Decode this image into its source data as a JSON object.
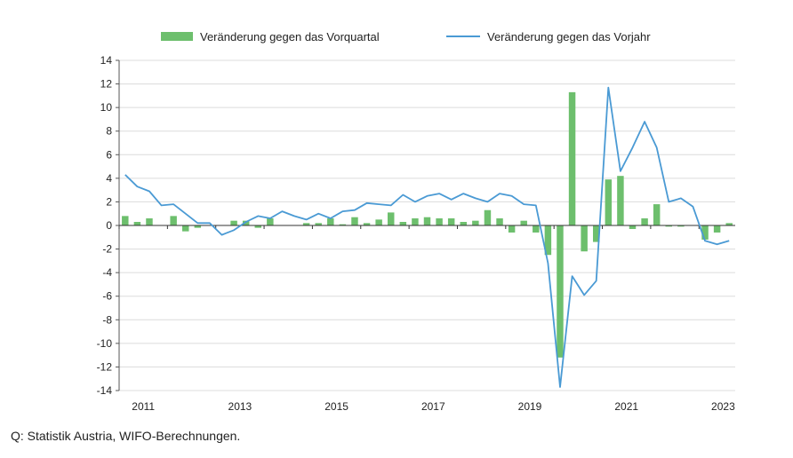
{
  "source_note": "Q: Statistik Austria, WIFO-Berechnungen.",
  "chart_data": {
    "type": "bar",
    "x_labels": [
      "2011",
      "2013",
      "2015",
      "2017",
      "2019",
      "2021",
      "2023"
    ],
    "quarters": [
      "2011Q1",
      "2011Q2",
      "2011Q3",
      "2011Q4",
      "2012Q1",
      "2012Q2",
      "2012Q3",
      "2012Q4",
      "2013Q1",
      "2013Q2",
      "2013Q3",
      "2013Q4",
      "2014Q1",
      "2014Q2",
      "2014Q3",
      "2014Q4",
      "2015Q1",
      "2015Q2",
      "2015Q3",
      "2015Q4",
      "2016Q1",
      "2016Q2",
      "2016Q3",
      "2016Q4",
      "2017Q1",
      "2017Q2",
      "2017Q3",
      "2017Q4",
      "2018Q1",
      "2018Q2",
      "2018Q3",
      "2018Q4",
      "2019Q1",
      "2019Q2",
      "2019Q3",
      "2019Q4",
      "2020Q1",
      "2020Q2",
      "2020Q3",
      "2020Q4",
      "2021Q1",
      "2021Q2",
      "2021Q3",
      "2021Q4",
      "2022Q1",
      "2022Q2",
      "2022Q3",
      "2022Q4",
      "2023Q1",
      "2023Q2",
      "2023Q3"
    ],
    "ylim": [
      -14,
      14
    ],
    "yticks": [
      14,
      12,
      10,
      8,
      6,
      4,
      2,
      0,
      -2,
      -4,
      -6,
      -8,
      -10,
      -12,
      -14
    ],
    "grid": true,
    "legend_position": "top",
    "series": [
      {
        "name": "Veränderung gegen das Vorquartal",
        "type": "bar",
        "color": "#6dbf6d",
        "values": [
          0.8,
          0.3,
          0.6,
          0.0,
          0.8,
          -0.5,
          -0.2,
          0.0,
          0.0,
          0.4,
          0.4,
          -0.2,
          0.6,
          0.0,
          0.0,
          0.2,
          0.2,
          0.6,
          0.1,
          0.7,
          0.2,
          0.5,
          1.1,
          0.3,
          0.6,
          0.7,
          0.6,
          0.6,
          0.3,
          0.4,
          1.3,
          0.6,
          -0.6,
          0.4,
          -0.6,
          -2.5,
          -11.2,
          11.3,
          -2.2,
          -1.4,
          3.9,
          4.2,
          -0.3,
          0.6,
          1.8,
          -0.1,
          -0.1,
          0.0,
          -1.2,
          -0.6,
          0.2
        ]
      },
      {
        "name": "Veränderung gegen das Vorjahr",
        "type": "line",
        "color": "#4a9ad4",
        "values": [
          4.3,
          3.3,
          2.9,
          1.7,
          1.8,
          1.0,
          0.2,
          0.2,
          -0.8,
          -0.4,
          0.3,
          0.8,
          0.6,
          1.2,
          0.8,
          0.5,
          1.0,
          0.6,
          1.2,
          1.3,
          1.9,
          1.8,
          1.7,
          2.6,
          2.0,
          2.5,
          2.7,
          2.2,
          2.7,
          2.3,
          2.0,
          2.7,
          2.5,
          1.8,
          1.7,
          -3.2,
          -13.7,
          -4.3,
          -5.9,
          -4.7,
          11.7,
          4.6,
          6.6,
          8.8,
          6.6,
          2.0,
          2.3,
          1.6,
          -1.3,
          -1.6,
          -1.3
        ]
      }
    ]
  }
}
